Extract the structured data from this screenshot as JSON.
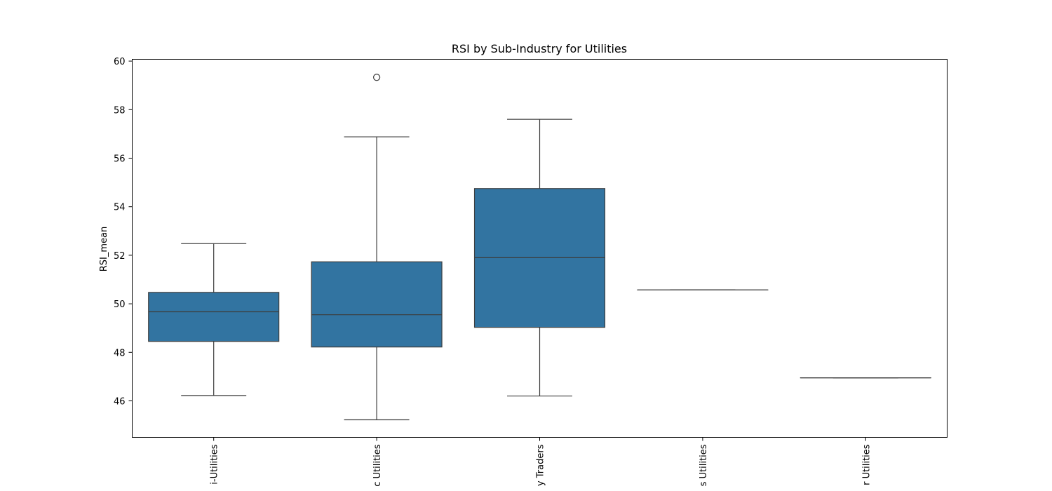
{
  "chart_data": {
    "type": "box",
    "title": "RSI by Sub-Industry for Utilities",
    "xlabel": "",
    "ylabel": "RSI_mean",
    "ylim": [
      45.5,
      60.0
    ],
    "yticks": [
      46,
      48,
      50,
      52,
      54,
      56,
      58,
      60
    ],
    "grid": false,
    "box_color": "#3274a1",
    "line_color": "#3d3d3d",
    "categories": [
      {
        "label": "Multi-Utilities",
        "visible_label": "i-Utilities",
        "whisker_low": 46.22,
        "q1": 48.45,
        "median": 49.67,
        "q3": 50.47,
        "whisker_high": 52.48,
        "outliers": []
      },
      {
        "label": "Electric Utilities",
        "visible_label": "c Utilities",
        "whisker_low": 45.22,
        "q1": 48.22,
        "median": 49.55,
        "q3": 51.73,
        "whisker_high": 56.88,
        "outliers": [
          59.33
        ]
      },
      {
        "label": "Independent Power Producers & Energy Traders",
        "visible_label": "y Traders",
        "whisker_low": 46.2,
        "q1": 49.03,
        "median": 51.9,
        "q3": 54.75,
        "whisker_high": 57.6,
        "outliers": []
      },
      {
        "label": "Gas Utilities",
        "visible_label": "s Utilities",
        "whisker_low": 50.57,
        "q1": 50.57,
        "median": 50.57,
        "q3": 50.57,
        "whisker_high": 50.57,
        "outliers": []
      },
      {
        "label": "Water Utilities",
        "visible_label": "r Utilities",
        "whisker_low": 46.95,
        "q1": 46.95,
        "median": 46.95,
        "q3": 46.95,
        "whisker_high": 46.95,
        "outliers": []
      }
    ]
  }
}
